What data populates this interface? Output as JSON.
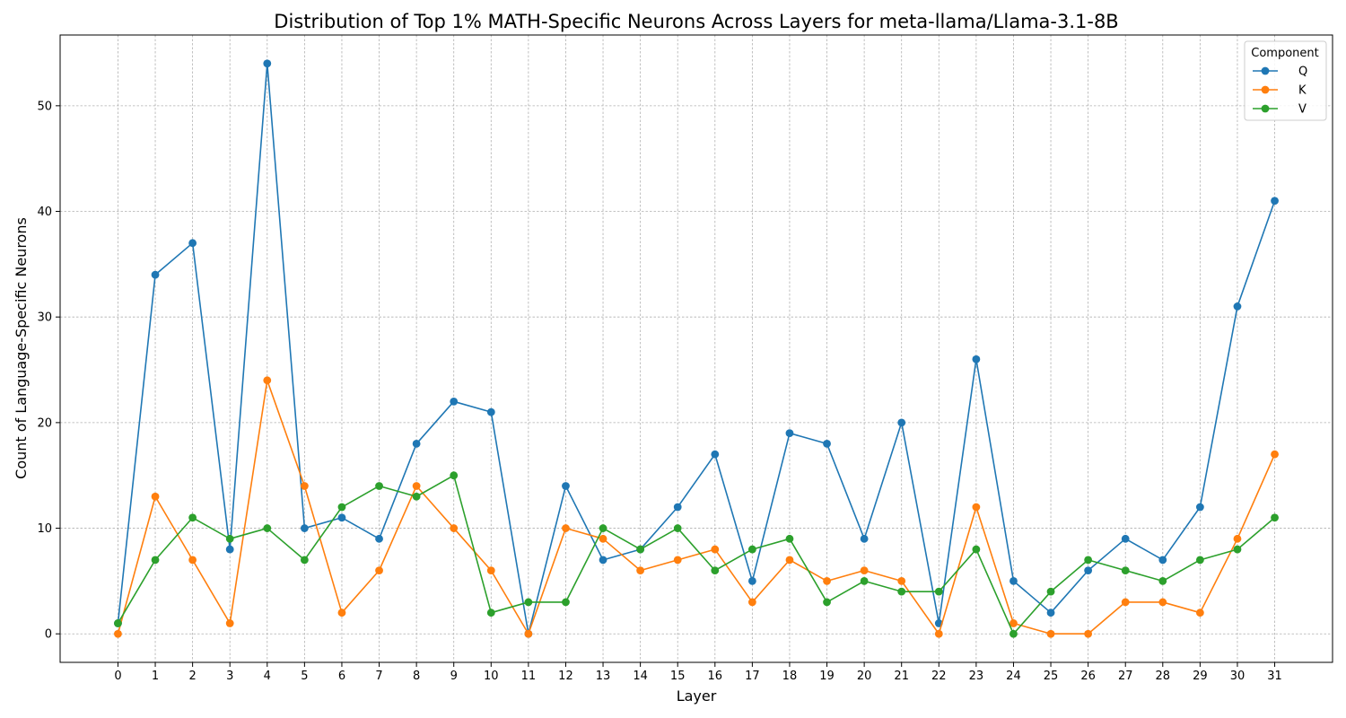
{
  "chart_data": {
    "type": "line",
    "title": "Distribution of Top 1% MATH-Specific Neurons Across Layers for meta-llama/Llama-3.1-8B",
    "xlabel": "Layer",
    "ylabel": "Count of Language-Specific Neurons",
    "x": [
      0,
      1,
      2,
      3,
      4,
      5,
      6,
      7,
      8,
      9,
      10,
      11,
      12,
      13,
      14,
      15,
      16,
      17,
      18,
      19,
      20,
      21,
      22,
      23,
      24,
      25,
      26,
      27,
      28,
      29,
      30,
      31
    ],
    "yticks": [
      0,
      10,
      20,
      30,
      40,
      50
    ],
    "ylim": [
      -2.7,
      56.7
    ],
    "xlim": [
      -1.55,
      32.55
    ],
    "grid": true,
    "legend": {
      "title": "Component",
      "position": "top-right"
    },
    "series": [
      {
        "name": "Q",
        "color": "#1f77b4",
        "values": [
          1,
          34,
          37,
          8,
          54,
          10,
          11,
          9,
          18,
          22,
          21,
          0,
          14,
          7,
          8,
          12,
          17,
          5,
          19,
          18,
          9,
          20,
          1,
          26,
          5,
          2,
          6,
          9,
          7,
          12,
          31,
          41
        ]
      },
      {
        "name": "K",
        "color": "#ff7f0e",
        "values": [
          0,
          13,
          7,
          1,
          24,
          14,
          2,
          6,
          14,
          10,
          6,
          0,
          10,
          9,
          6,
          7,
          8,
          3,
          7,
          5,
          6,
          5,
          0,
          12,
          1,
          0,
          0,
          3,
          3,
          2,
          9,
          17
        ]
      },
      {
        "name": "V",
        "color": "#2ca02c",
        "values": [
          1,
          7,
          11,
          9,
          10,
          7,
          12,
          14,
          13,
          15,
          2,
          3,
          3,
          10,
          8,
          10,
          6,
          8,
          9,
          3,
          5,
          4,
          4,
          8,
          0,
          4,
          7,
          6,
          5,
          7,
          8,
          11
        ]
      }
    ]
  }
}
